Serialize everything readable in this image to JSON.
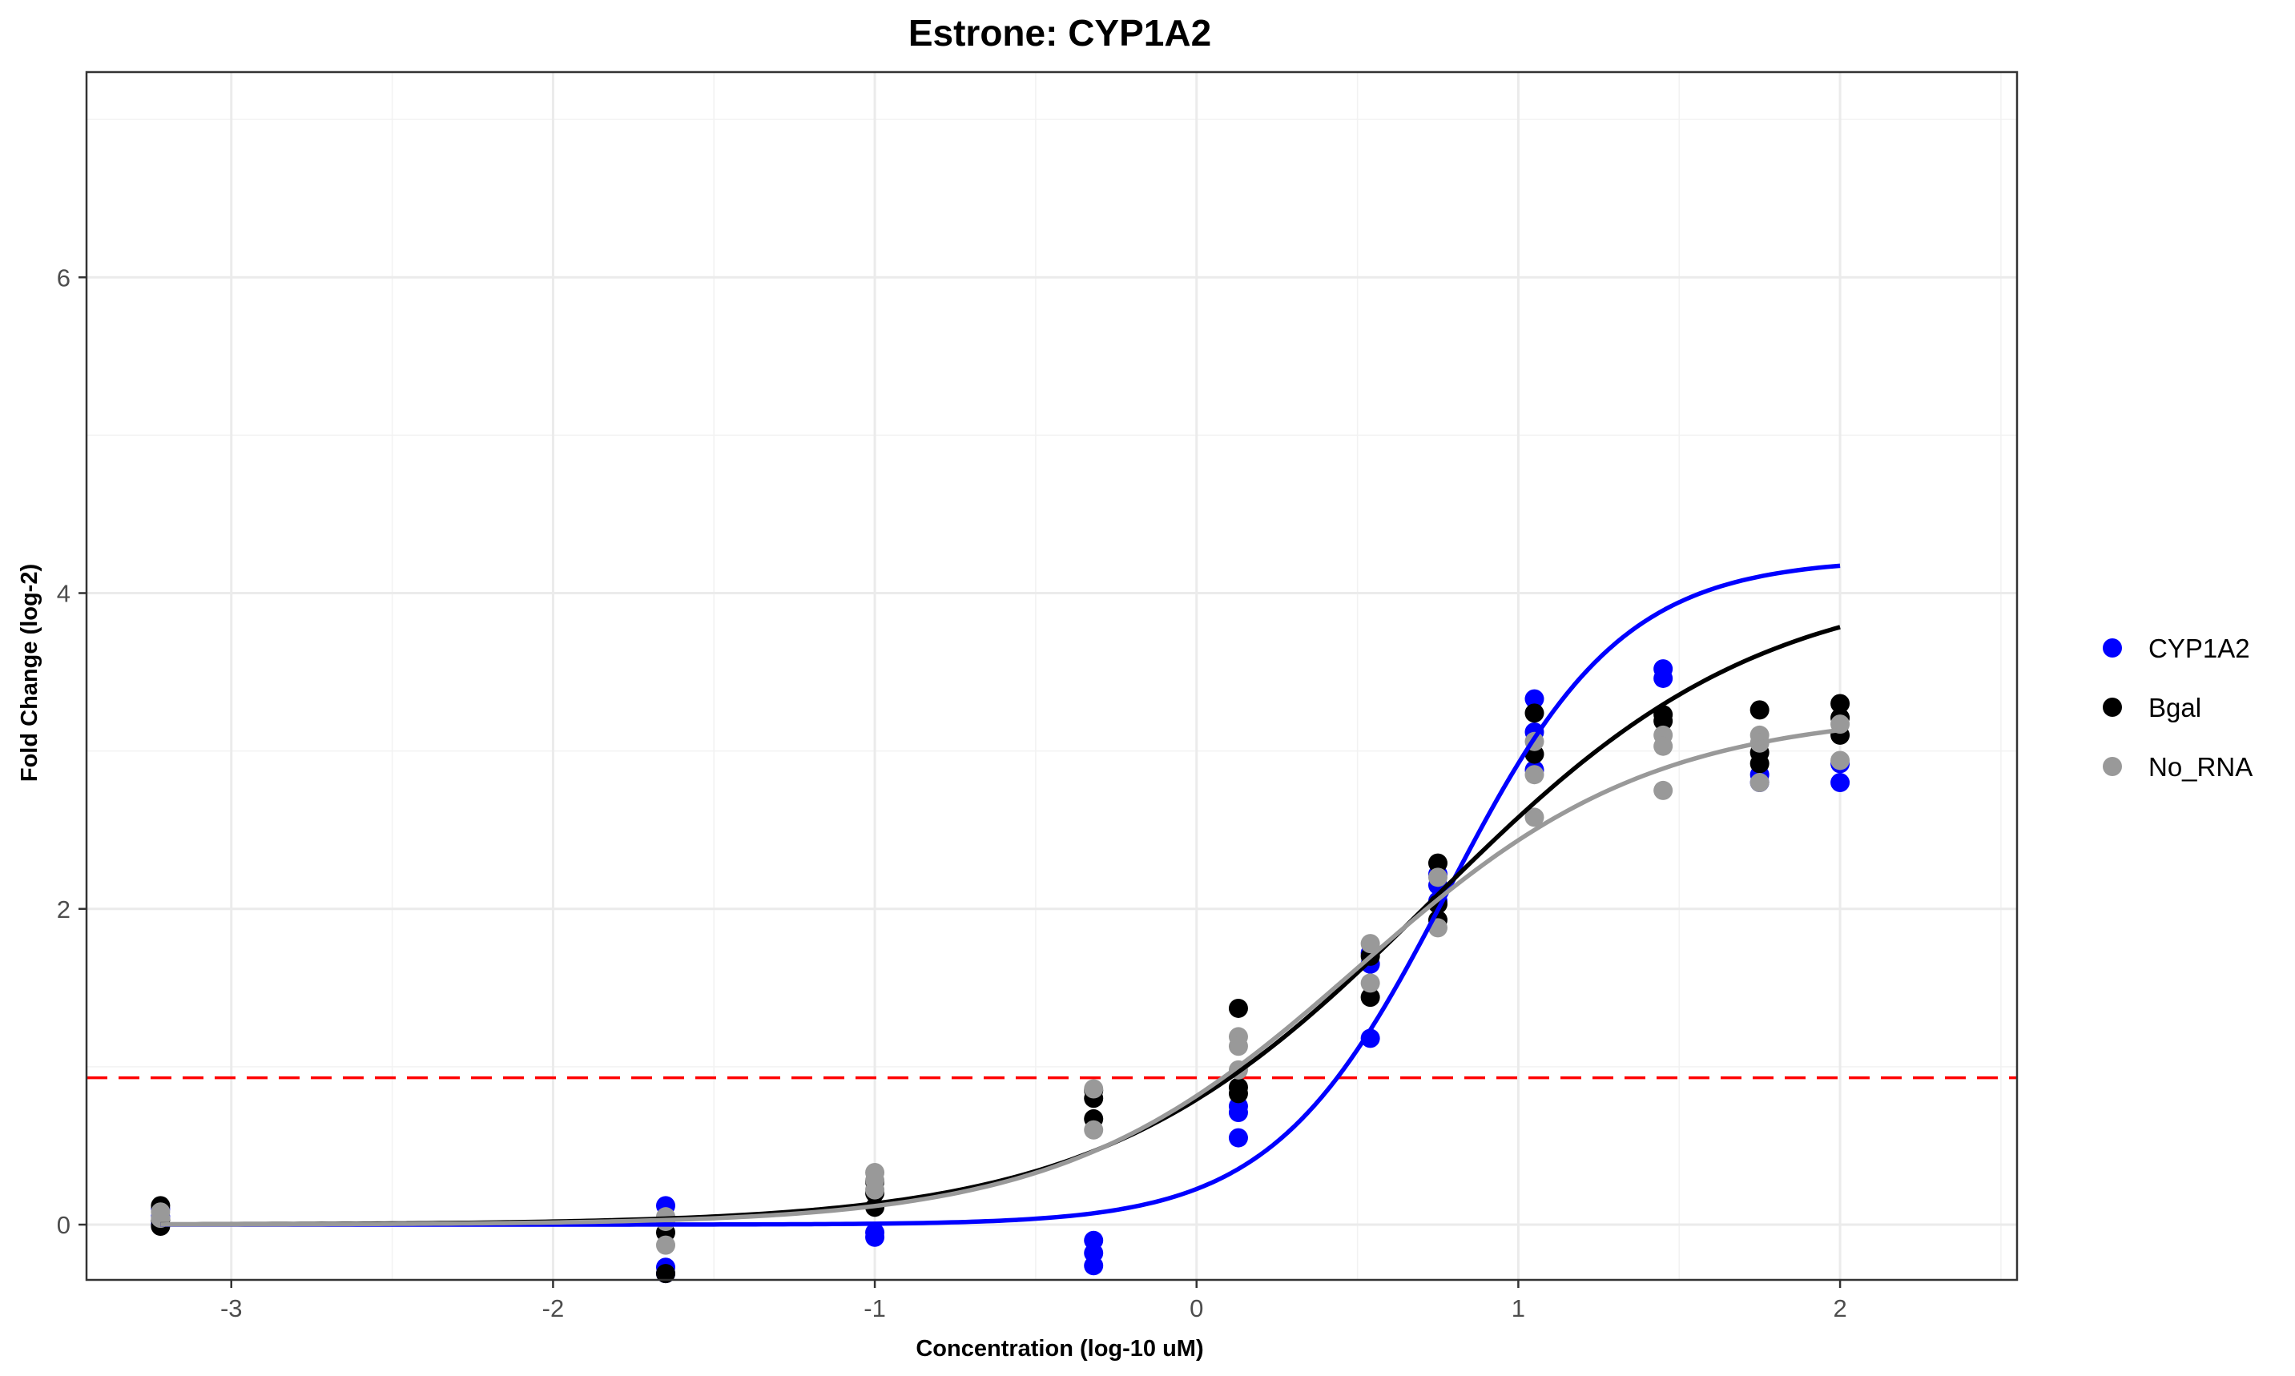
{
  "chart_data": {
    "type": "scatter",
    "title": "Estrone: CYP1A2",
    "xlabel": "Concentration (log-10 uM)",
    "ylabel": "Fold Change (log-2)",
    "xlim": [
      -3.45,
      2.55
    ],
    "ylim": [
      -0.35,
      7.3
    ],
    "x_ticks": [
      -3,
      -2,
      -1,
      0,
      1,
      2
    ],
    "y_ticks": [
      0,
      2,
      4,
      6
    ],
    "x_tick_labels": [
      "-3",
      "-2",
      "-1",
      "0",
      "1",
      "2"
    ],
    "y_tick_labels": [
      "0",
      "2",
      "4",
      "6"
    ],
    "grid": true,
    "legend_position": "right",
    "threshold": {
      "y": 0.93,
      "color": "#ff0000",
      "style": "dashed"
    },
    "series": [
      {
        "name": "CYP1A2",
        "color": "#0000ff",
        "points": [
          [
            -3.22,
            0.1
          ],
          [
            -3.22,
            0.05
          ],
          [
            -3.22,
            0.0
          ],
          [
            -1.65,
            0.12
          ],
          [
            -1.65,
            -0.27
          ],
          [
            -1.65,
            -0.31
          ],
          [
            -1.0,
            -0.05
          ],
          [
            -1.0,
            -0.08
          ],
          [
            -0.32,
            -0.1
          ],
          [
            -0.32,
            -0.18
          ],
          [
            -0.32,
            -0.26
          ],
          [
            0.13,
            0.71
          ],
          [
            0.13,
            0.55
          ],
          [
            0.13,
            0.75
          ],
          [
            0.54,
            1.18
          ],
          [
            0.54,
            1.65
          ],
          [
            0.54,
            1.72
          ],
          [
            0.75,
            2.15
          ],
          [
            0.75,
            2.22
          ],
          [
            0.75,
            2.05
          ],
          [
            1.05,
            3.33
          ],
          [
            1.05,
            3.12
          ],
          [
            1.05,
            2.88
          ],
          [
            1.45,
            3.52
          ],
          [
            1.45,
            3.46
          ],
          [
            1.75,
            2.8
          ],
          [
            1.75,
            2.85
          ],
          [
            2.0,
            2.8
          ],
          [
            2.0,
            2.92
          ]
        ],
        "curve": {
          "bottom": 0.0,
          "top": 4.22,
          "ec50_log": 0.78,
          "hill": 1.6
        }
      },
      {
        "name": "Bgal",
        "color": "#000000",
        "points": [
          [
            -3.22,
            0.12
          ],
          [
            -3.22,
            0.03
          ],
          [
            -3.22,
            -0.01
          ],
          [
            -1.65,
            -0.05
          ],
          [
            -1.65,
            -0.31
          ],
          [
            -1.65,
            0.02
          ],
          [
            -1.0,
            0.11
          ],
          [
            -1.0,
            0.2
          ],
          [
            -1.0,
            0.27
          ],
          [
            -0.32,
            0.67
          ],
          [
            -0.32,
            0.8
          ],
          [
            -0.32,
            0.85
          ],
          [
            0.13,
            1.37
          ],
          [
            0.13,
            0.87
          ],
          [
            0.13,
            0.83
          ],
          [
            0.54,
            1.44
          ],
          [
            0.54,
            1.7
          ],
          [
            0.75,
            2.29
          ],
          [
            0.75,
            2.03
          ],
          [
            0.75,
            1.93
          ],
          [
            1.05,
            3.24
          ],
          [
            1.05,
            2.98
          ],
          [
            1.45,
            3.23
          ],
          [
            1.45,
            3.19
          ],
          [
            1.75,
            3.26
          ],
          [
            1.75,
            2.99
          ],
          [
            1.75,
            2.92
          ],
          [
            2.0,
            3.3
          ],
          [
            2.0,
            3.21
          ],
          [
            2.0,
            3.1
          ]
        ],
        "curve": {
          "bottom": 0.0,
          "top": 4.1,
          "ec50_log": 0.73,
          "hill": 0.85
        }
      },
      {
        "name": "No_RNA",
        "color": "#999999",
        "points": [
          [
            -3.22,
            0.08
          ],
          [
            -3.22,
            0.04
          ],
          [
            -1.65,
            0.02
          ],
          [
            -1.65,
            -0.13
          ],
          [
            -1.65,
            0.05
          ],
          [
            -1.0,
            0.33
          ],
          [
            -1.0,
            0.28
          ],
          [
            -1.0,
            0.22
          ],
          [
            -0.32,
            0.86
          ],
          [
            -0.32,
            0.6
          ],
          [
            0.13,
            1.19
          ],
          [
            0.13,
            1.13
          ],
          [
            0.13,
            0.98
          ],
          [
            0.54,
            1.78
          ],
          [
            0.54,
            1.53
          ],
          [
            0.75,
            2.2
          ],
          [
            0.75,
            1.88
          ],
          [
            1.05,
            3.06
          ],
          [
            1.05,
            2.85
          ],
          [
            1.05,
            2.58
          ],
          [
            1.45,
            3.1
          ],
          [
            1.45,
            3.03
          ],
          [
            1.45,
            2.75
          ],
          [
            1.75,
            3.1
          ],
          [
            1.75,
            3.05
          ],
          [
            1.75,
            2.8
          ],
          [
            2.0,
            3.17
          ],
          [
            2.0,
            2.94
          ]
        ],
        "curve": {
          "bottom": 0.0,
          "top": 3.25,
          "ec50_log": 0.5,
          "hill": 0.95
        }
      }
    ]
  }
}
